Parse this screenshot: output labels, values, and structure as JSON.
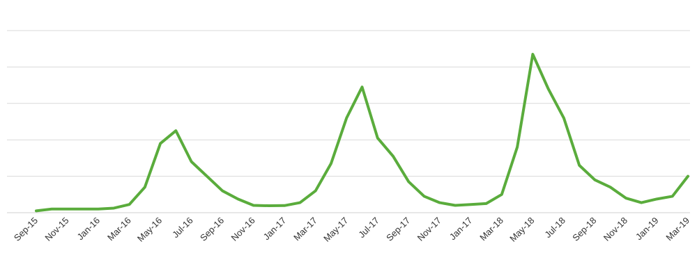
{
  "colors": {
    "line": "#5aac3c",
    "grid": "#d9d9d9",
    "text": "#333333"
  },
  "chart_data": {
    "type": "line",
    "title": "",
    "xlabel": "",
    "ylabel": "",
    "grid": true,
    "legend": "none",
    "ylim": [
      0,
      100
    ],
    "x": [
      "Sep-15",
      "Oct-15",
      "Nov-15",
      "Dec-15",
      "Jan-16",
      "Feb-16",
      "Mar-16",
      "Apr-16",
      "May-16",
      "Jun-16",
      "Jul-16",
      "Aug-16",
      "Sep-16",
      "Oct-16",
      "Nov-16",
      "Dec-16",
      "Jan-17",
      "Feb-17",
      "Mar-17",
      "Apr-17",
      "May-17",
      "Jun-17",
      "Jul-17",
      "Aug-17",
      "Sep-17",
      "Oct-17",
      "Nov-17",
      "Dec-17",
      "Jan-17",
      "Feb-18",
      "Mar-18",
      "Apr-18",
      "May-18",
      "Jun-18",
      "Jul-18",
      "Aug-18",
      "Sep-18",
      "Oct-18",
      "Nov-18",
      "Dec-18",
      "Jan-19",
      "Feb-19",
      "Mar-19"
    ],
    "tick_labels": [
      "Sep-15",
      "Nov-15",
      "Jan-16",
      "Mar-16",
      "May-16",
      "Jul-16",
      "Sep-16",
      "Nov-16",
      "Jan-17",
      "Mar-17",
      "May-17",
      "Jul-17",
      "Sep-17",
      "Nov-17",
      "Jan-17",
      "Mar-18",
      "May-18",
      "Jul-18",
      "Sep-18",
      "Nov-18",
      "Jan-19",
      "Mar-19"
    ],
    "series": [
      {
        "values": [
          1,
          2,
          2,
          2,
          2,
          2.5,
          4.5,
          14,
          38,
          45,
          28,
          20,
          12,
          7.5,
          4,
          3.8,
          3.9,
          5.5,
          12,
          27,
          52,
          69,
          41,
          31,
          17,
          9,
          5.5,
          4,
          4.5,
          5,
          10,
          36,
          87,
          68,
          52,
          26,
          18,
          14,
          8,
          5.5,
          7.5,
          9,
          20
        ]
      }
    ]
  }
}
